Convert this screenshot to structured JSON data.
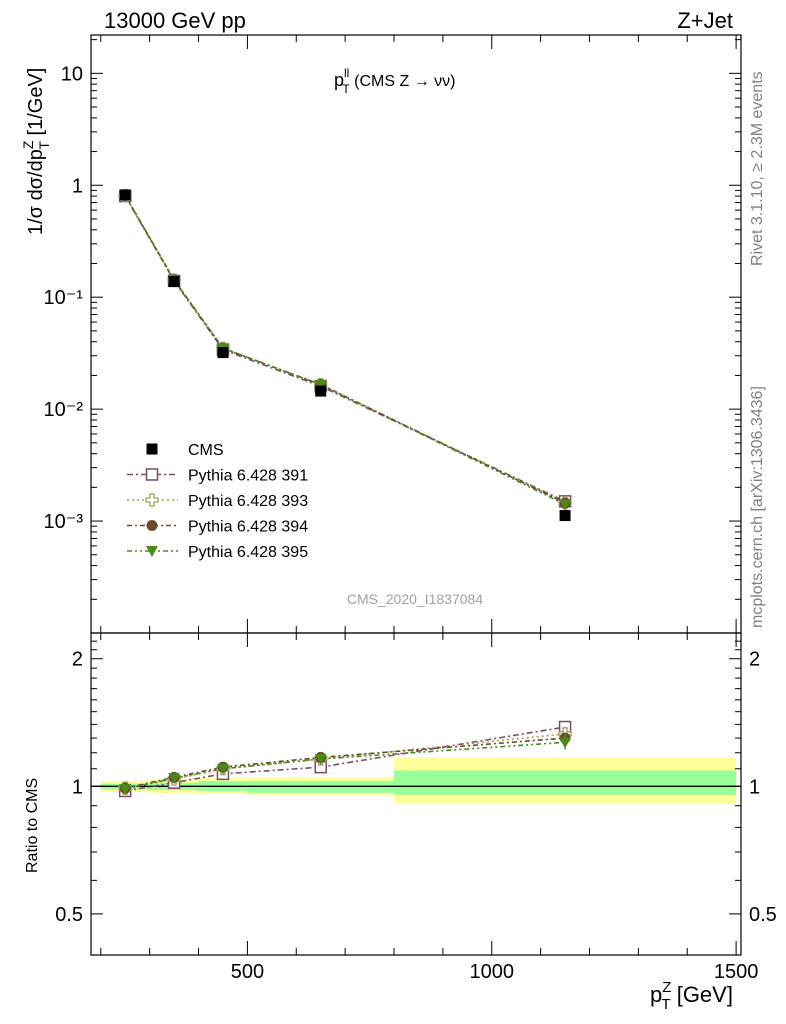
{
  "header": {
    "left": "13000 GeV pp",
    "right": "Z+Jet"
  },
  "plot_title": {
    "main": "p",
    "sup": "ll",
    "sub": "T",
    "rest": " (CMS Z → νν)"
  },
  "side_text": {
    "top": "Rivet 3.1.10, ≥ 2.3M events",
    "bottom": "mcplots.cern.ch [arXiv:1306.3436]"
  },
  "watermark": "CMS_2020_I1837084",
  "main_ylabel": {
    "a": "1/σ dσ/dp",
    "sup": "Z",
    "sub": "T",
    "b": " [1/GeV]"
  },
  "ratio_ylabel": "Ratio to CMS",
  "xlabel": {
    "a": "p",
    "sup": "Z",
    "sub": "T",
    "b": " [GeV]"
  },
  "y_ticks_main": [
    {
      "value": 10,
      "label": "10"
    },
    {
      "value": 1,
      "label": "1"
    },
    {
      "value": 0.1,
      "label": "10⁻¹"
    },
    {
      "value": 0.01,
      "label": "10⁻²"
    },
    {
      "value": 0.001,
      "label": "10⁻³"
    }
  ],
  "y_ticks_ratio": [
    {
      "value": 2,
      "label": "2"
    },
    {
      "value": 1,
      "label": "1"
    },
    {
      "value": 0.5,
      "label": "0.5"
    }
  ],
  "x_ticks": [
    {
      "value": 500,
      "label": "500"
    },
    {
      "value": 1000,
      "label": "1000"
    },
    {
      "value": 1500,
      "label": "1500"
    }
  ],
  "legend": [
    {
      "label": "CMS"
    },
    {
      "label": "Pythia 6.428 391"
    },
    {
      "label": "Pythia 6.428 393"
    },
    {
      "label": "Pythia 6.428 394"
    },
    {
      "label": "Pythia 6.428 395"
    }
  ],
  "chart_data": [
    {
      "type": "scatter",
      "panel": "main",
      "ylabel": "1/σ dσ/dp_T^Z [1/GeV]",
      "yscale": "log",
      "xlim": [
        180,
        1510
      ],
      "ylim": [
        0.0001,
        22
      ],
      "legend_position": "lower-left",
      "bins": [
        [
          200,
          300
        ],
        [
          300,
          400
        ],
        [
          400,
          500
        ],
        [
          500,
          800
        ],
        [
          800,
          1500
        ]
      ],
      "x": [
        250,
        350,
        450,
        650,
        1150
      ],
      "series": [
        {
          "name": "CMS",
          "color": "#000000",
          "marker": "filled-square",
          "values": [
            0.82,
            0.138,
            0.032,
            0.0145,
            0.00112
          ]
        },
        {
          "name": "Pythia 6.428 391",
          "color": "#7b4a6a",
          "marker": "open-square",
          "dash": "6,3,2,3",
          "values": [
            0.8,
            0.14,
            0.034,
            0.016,
            0.0015
          ]
        },
        {
          "name": "Pythia 6.428 393",
          "color": "#a0a050",
          "marker": "open-cross",
          "dash": "2,3",
          "values": [
            0.81,
            0.142,
            0.035,
            0.0165,
            0.00146
          ]
        },
        {
          "name": "Pythia 6.428 394",
          "color": "#6b4a2a",
          "marker": "filled-circle",
          "dash": "5,3,2,3",
          "values": [
            0.81,
            0.143,
            0.035,
            0.0166,
            0.00145
          ]
        },
        {
          "name": "Pythia 6.428 395",
          "color": "#4a8a1a",
          "marker": "filled-triangle-down",
          "dash": "5,3,2,3,2,3",
          "values": [
            0.81,
            0.142,
            0.035,
            0.0165,
            0.00141
          ]
        }
      ]
    },
    {
      "type": "scatter",
      "panel": "ratio",
      "ylabel": "Ratio to CMS",
      "yscale": "log",
      "xlim": [
        180,
        1510
      ],
      "ylim": [
        0.4,
        2.3
      ],
      "x": [
        250,
        350,
        450,
        650,
        1150
      ],
      "uncertainty_bands": [
        {
          "x_from": 200,
          "x_to": 300,
          "stat": [
            0.985,
            1.015
          ],
          "total": [
            0.97,
            1.03
          ]
        },
        {
          "x_from": 300,
          "x_to": 400,
          "stat": [
            0.98,
            1.02
          ],
          "total": [
            0.965,
            1.035
          ]
        },
        {
          "x_from": 400,
          "x_to": 500,
          "stat": [
            0.975,
            1.03
          ],
          "total": [
            0.96,
            1.045
          ]
        },
        {
          "x_from": 500,
          "x_to": 800,
          "stat": [
            0.965,
            1.03
          ],
          "total": [
            0.955,
            1.05
          ]
        },
        {
          "x_from": 800,
          "x_to": 1500,
          "stat": [
            0.955,
            1.09
          ],
          "total": [
            0.91,
            1.17
          ]
        }
      ],
      "series": [
        {
          "name": "Pythia 6.428 391",
          "color": "#7b4a6a",
          "marker": "open-square",
          "dash": "6,3,2,3",
          "values": [
            0.975,
            1.02,
            1.07,
            1.11,
            1.38
          ]
        },
        {
          "name": "Pythia 6.428 393",
          "color": "#a0a050",
          "marker": "open-cross",
          "dash": "2,3",
          "values": [
            0.99,
            1.04,
            1.1,
            1.16,
            1.33
          ]
        },
        {
          "name": "Pythia 6.428 394",
          "color": "#6b4a2a",
          "marker": "filled-circle",
          "dash": "5,3,2,3",
          "values": [
            0.99,
            1.05,
            1.11,
            1.17,
            1.3
          ]
        },
        {
          "name": "Pythia 6.428 395",
          "color": "#4a8a1a",
          "marker": "filled-triangle-down",
          "dash": "5,3,2,3,2,3",
          "values": [
            0.985,
            1.045,
            1.1,
            1.16,
            1.27
          ]
        }
      ]
    }
  ]
}
